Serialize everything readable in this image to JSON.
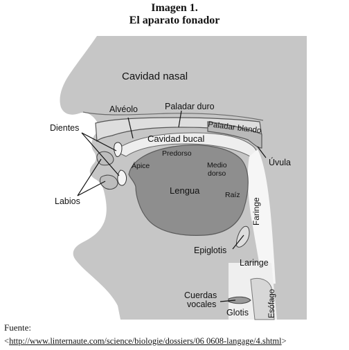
{
  "title": {
    "line1": "Imagen 1.",
    "line2": "El aparato fonador"
  },
  "labels": {
    "cavidad_nasal": "Cavidad nasal",
    "alveolo": "Alvéolo",
    "paladar_duro": "Paladar duro",
    "paladar_blando": "Paladar blando",
    "dientes": "Dientes",
    "cavidad_bucal": "Cavidad bucal",
    "uvula": "Úvula",
    "predorso": "Predorso",
    "apice": "Ápice",
    "medio": "Medio",
    "dorso": "dorso",
    "lengua": "Lengua",
    "raiz": "Raíz",
    "labios": "Labios",
    "faringe": "Faringe",
    "epiglotis": "Epiglotis",
    "laringe": "Laringe",
    "cuerdas": "Cuerdas",
    "vocales": "vocales",
    "esofago": "Esófago",
    "glotis": "Glotis"
  },
  "source": {
    "label": "Fuente:",
    "open": "<",
    "url": "http://www.linternaute.com/science/biologie/dossiers/06 0608-langage/4.shtml",
    "close": ">"
  },
  "colors": {
    "background_gray": "#c8c8c8",
    "palate_light": "#dcdcdc",
    "tongue": "#909090",
    "airway_white": "#f8f8f8"
  }
}
